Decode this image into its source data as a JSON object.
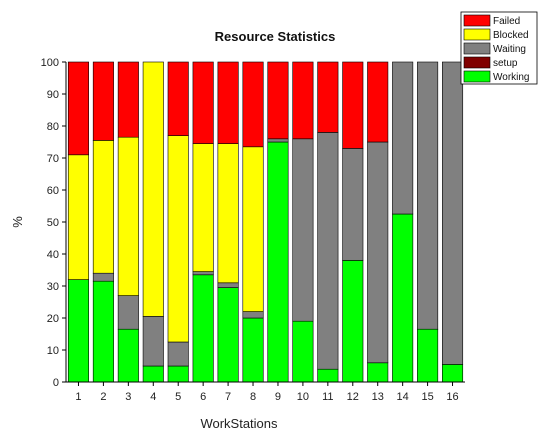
{
  "chart_data": {
    "type": "bar",
    "stacked": true,
    "title": "Resource Statistics",
    "xlabel": "WorkStations",
    "ylabel": "%",
    "ylim": [
      0,
      100
    ],
    "yticks": [
      0,
      10,
      20,
      30,
      40,
      50,
      60,
      70,
      80,
      90,
      100
    ],
    "categories": [
      "1",
      "2",
      "3",
      "4",
      "5",
      "6",
      "7",
      "8",
      "9",
      "10",
      "11",
      "12",
      "13",
      "14",
      "15",
      "16"
    ],
    "series": [
      {
        "name": "Working",
        "color": "#00ff00",
        "values": [
          32,
          31.5,
          16.5,
          5,
          5,
          33.5,
          29.5,
          20,
          75,
          19,
          4,
          38,
          6,
          52.5,
          16.5,
          5.5
        ]
      },
      {
        "name": "setup",
        "color": "#800000",
        "values": [
          0,
          0,
          0,
          0,
          0,
          0,
          0,
          0,
          0,
          0,
          0,
          0,
          0,
          0,
          0,
          0
        ]
      },
      {
        "name": "Waiting",
        "color": "#808080",
        "values": [
          0,
          2.5,
          10.5,
          15.5,
          7.5,
          1,
          1.5,
          2,
          1,
          57,
          74,
          35,
          69,
          47.5,
          83.5,
          94.5
        ]
      },
      {
        "name": "Blocked",
        "color": "#ffff00",
        "values": [
          39,
          41.5,
          49.5,
          79.5,
          64.5,
          40,
          43.5,
          51.5,
          0,
          0,
          0,
          0,
          0,
          0,
          0,
          0
        ]
      },
      {
        "name": "Failed",
        "color": "#ff0000",
        "values": [
          29,
          24.5,
          23.5,
          0,
          23,
          25.5,
          25.5,
          26.5,
          24,
          24,
          22,
          27,
          25,
          0,
          0,
          0
        ]
      }
    ],
    "legend_order": [
      "Failed",
      "Blocked",
      "Waiting",
      "setup",
      "Working"
    ],
    "legend_position": "top-right",
    "grid": false
  }
}
